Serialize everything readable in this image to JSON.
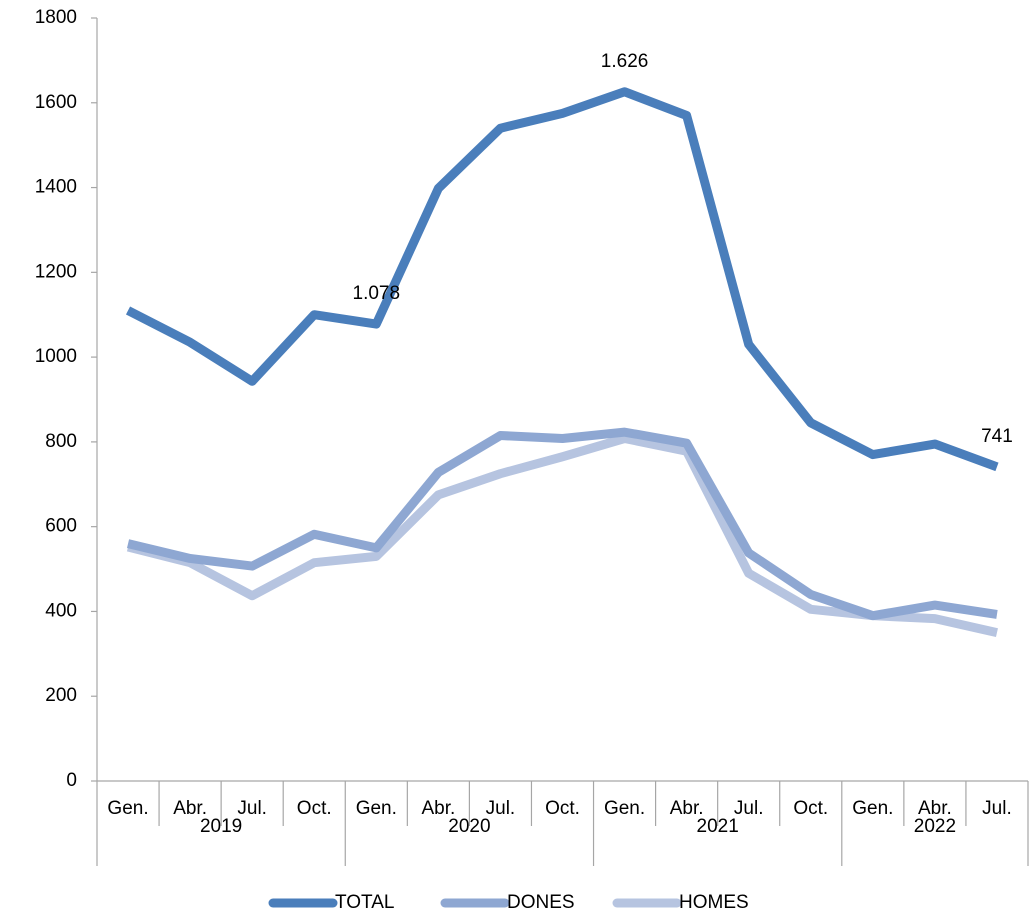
{
  "chart_data": {
    "type": "line",
    "categories": [
      "Gen.",
      "Abr.",
      "Jul.",
      "Oct.",
      "Gen.",
      "Abr.",
      "Jul.",
      "Oct.",
      "Gen.",
      "Abr.",
      "Jul.",
      "Oct.",
      "Gen.",
      "Abr.",
      "Jul."
    ],
    "years": [
      "2019",
      "2020",
      "2021",
      "2022"
    ],
    "series": [
      {
        "name": "TOTAL",
        "color": "#4a7ebb",
        "values": [
          1110,
          1035,
          943,
          1100,
          1078,
          1398,
          1540,
          1575,
          1626,
          1570,
          1030,
          845,
          770,
          795,
          741
        ],
        "value_labels": [
          null,
          null,
          null,
          null,
          "1.078",
          null,
          null,
          null,
          "1.626",
          null,
          null,
          null,
          null,
          null,
          "741"
        ]
      },
      {
        "name": "DONES",
        "color": "#8ea7d2",
        "values": [
          560,
          525,
          507,
          582,
          550,
          728,
          815,
          808,
          823,
          797,
          538,
          440,
          390,
          415,
          393
        ]
      },
      {
        "name": "HOMES",
        "color": "#b6c4e0",
        "values": [
          552,
          515,
          437,
          515,
          530,
          675,
          725,
          765,
          808,
          778,
          490,
          405,
          390,
          383,
          350
        ]
      }
    ],
    "ylim": [
      0,
      1800
    ],
    "yticks": [
      0,
      200,
      400,
      600,
      800,
      1000,
      1200,
      1400,
      1600,
      1800
    ],
    "grid": false,
    "legend": "bottom"
  }
}
